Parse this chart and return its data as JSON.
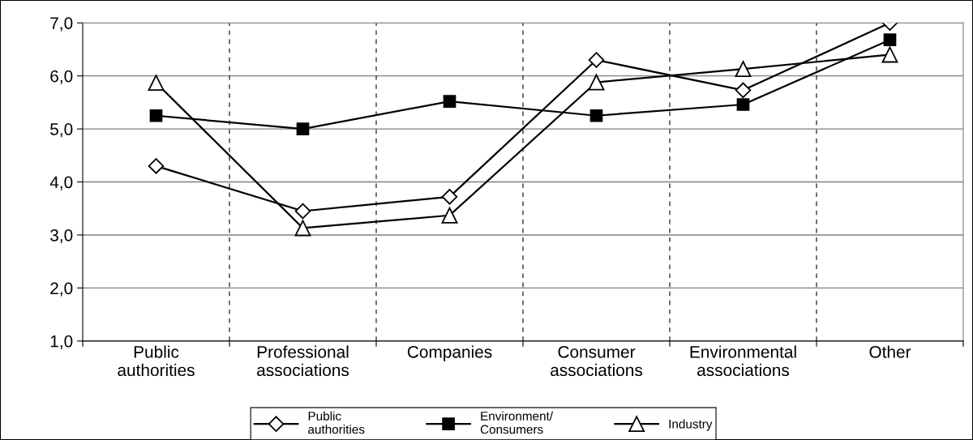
{
  "chart_data": {
    "type": "line",
    "categories": [
      "Public\nauthorities",
      "Professional\nassociations",
      "Companies",
      "Consumer\nassociations",
      "Environmental\nassociations",
      "Other"
    ],
    "series": [
      {
        "name": "Public\nauthorities",
        "color": "#000000",
        "marker": "diamond",
        "values": [
          4.3,
          3.45,
          3.72,
          6.3,
          5.73,
          7.0
        ]
      },
      {
        "name": "Environment/\nConsumers",
        "color": "#000000",
        "marker": "square",
        "values": [
          5.25,
          5.0,
          5.52,
          5.25,
          5.46,
          6.68
        ]
      },
      {
        "name": "Industry",
        "color": "#000000",
        "marker": "triangle",
        "values": [
          5.87,
          3.13,
          3.37,
          5.88,
          6.13,
          6.4
        ]
      }
    ],
    "ylim": [
      1,
      7
    ],
    "yticks": [
      {
        "value": 1,
        "label": "1,0"
      },
      {
        "value": 2,
        "label": "2,0"
      },
      {
        "value": 3,
        "label": "3,0"
      },
      {
        "value": 4,
        "label": "4,0"
      },
      {
        "value": 5,
        "label": "5,0"
      },
      {
        "value": 6,
        "label": "6,0"
      },
      {
        "value": 7,
        "label": "7,0"
      }
    ],
    "grid": true,
    "legend": "bottom",
    "line_style": "solid"
  }
}
